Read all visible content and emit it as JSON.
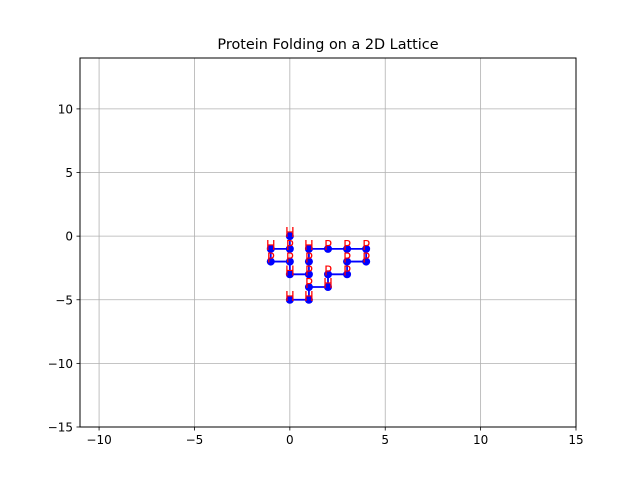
{
  "chart_data": {
    "type": "line",
    "title": "Protein Folding on a 2D Lattice",
    "xlabel": "",
    "ylabel": "",
    "xlim": [
      -11,
      15
    ],
    "ylim": [
      -15,
      14
    ],
    "xticks": [
      -10,
      -5,
      0,
      5,
      10,
      15
    ],
    "yticks": [
      -15,
      -10,
      -5,
      0,
      5,
      10
    ],
    "xtick_labels": [
      "−10",
      "−5",
      "0",
      "5",
      "10",
      "15"
    ],
    "ytick_labels": [
      "−15",
      "−10",
      "−5",
      "0",
      "5",
      "10"
    ],
    "grid": true,
    "line_color": "#0000ff",
    "marker_color": "#0000ff",
    "label_color": "#ff0000",
    "series": [
      {
        "points": [
          {
            "x": 0,
            "y": 0,
            "label": "H"
          },
          {
            "x": 0,
            "y": -1,
            "label": "P"
          },
          {
            "x": -1,
            "y": -1,
            "label": "H"
          },
          {
            "x": -1,
            "y": -2,
            "label": "P"
          },
          {
            "x": 0,
            "y": -2,
            "label": "P"
          },
          {
            "x": 0,
            "y": -3,
            "label": "H"
          },
          {
            "x": 1,
            "y": -3,
            "label": "P"
          },
          {
            "x": 1,
            "y": -2,
            "label": "P"
          },
          {
            "x": 1,
            "y": -1,
            "label": "H"
          },
          {
            "x": 2,
            "y": -1,
            "label": "P"
          },
          {
            "x": 3,
            "y": -1,
            "label": "P"
          },
          {
            "x": 4,
            "y": -1,
            "label": "P"
          },
          {
            "x": 4,
            "y": -2,
            "label": "P"
          },
          {
            "x": 3,
            "y": -2,
            "label": "P"
          },
          {
            "x": 3,
            "y": -3,
            "label": "P"
          },
          {
            "x": 2,
            "y": -3,
            "label": "P"
          },
          {
            "x": 2,
            "y": -4,
            "label": "H"
          },
          {
            "x": 1,
            "y": -4,
            "label": "P"
          },
          {
            "x": 1,
            "y": -5,
            "label": "H"
          },
          {
            "x": 0,
            "y": -5,
            "label": "H"
          }
        ]
      }
    ]
  }
}
